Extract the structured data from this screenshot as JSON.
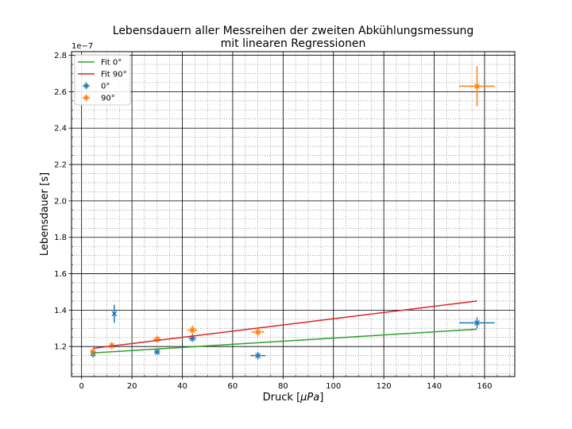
{
  "chart_data": {
    "type": "scatter",
    "title_lines": [
      "Lebensdauern aller Messreihen der zweiten Abkühlungsmessung",
      "mit linearen Regressionen"
    ],
    "xlabel_prefix": "Druck [",
    "xlabel_unit": "μPa",
    "xlabel_suffix": "]",
    "ylabel": "Lebensdauer [s]",
    "offset_text": "1e−7",
    "xlim": [
      -4,
      172
    ],
    "ylim": [
      1.035,
      2.82
    ],
    "x_ticks": [
      0,
      20,
      40,
      60,
      80,
      100,
      120,
      140,
      160
    ],
    "y_ticks": [
      1.2,
      1.4,
      1.6,
      1.8,
      2.0,
      2.2,
      2.4,
      2.6,
      2.8
    ],
    "x_tick_labels": [
      "0",
      "20",
      "40",
      "60",
      "80",
      "100",
      "120",
      "140",
      "160"
    ],
    "y_tick_labels": [
      "1.2",
      "1.4",
      "1.6",
      "1.8",
      "2.0",
      "2.2",
      "2.4",
      "2.6",
      "2.8"
    ],
    "x_minor_step": 5,
    "y_minor_step": 0.05,
    "grid": "major and minor",
    "legend_position": "top-left",
    "legend": [
      "Fit 0°",
      "Fit 90°",
      "0°",
      "90°"
    ],
    "series": [
      {
        "name": "0°",
        "kind": "errorbar",
        "color": "#1f77b4",
        "points": [
          {
            "x": 4.5,
            "y": 1.16,
            "xerr": 0.6,
            "yerr": 0.02
          },
          {
            "x": 13.0,
            "y": 1.38,
            "xerr": 0.6,
            "yerr": 0.05
          },
          {
            "x": 30.0,
            "y": 1.17,
            "xerr": 1.2,
            "yerr": 0.015
          },
          {
            "x": 44.0,
            "y": 1.245,
            "xerr": 1.5,
            "yerr": 0.02
          },
          {
            "x": 70.0,
            "y": 1.15,
            "xerr": 3.0,
            "yerr": 0.02
          },
          {
            "x": 157.0,
            "y": 1.33,
            "xerr": 7.0,
            "yerr": 0.03
          }
        ]
      },
      {
        "name": "90°",
        "kind": "errorbar",
        "color": "#ff7f0e",
        "points": [
          {
            "x": 4.5,
            "y": 1.17,
            "xerr": 0.6,
            "yerr": 0.02
          },
          {
            "x": 12.0,
            "y": 1.205,
            "xerr": 1.0,
            "yerr": 0.02
          },
          {
            "x": 30.0,
            "y": 1.24,
            "xerr": 1.5,
            "yerr": 0.02
          },
          {
            "x": 44.0,
            "y": 1.29,
            "xerr": 2.0,
            "yerr": 0.025
          },
          {
            "x": 70.0,
            "y": 1.28,
            "xerr": 2.5,
            "yerr": 0.025
          },
          {
            "x": 157.0,
            "y": 2.63,
            "xerr": 7.0,
            "yerr": 0.11
          }
        ]
      },
      {
        "name": "Fit 0°",
        "kind": "line",
        "color": "#2ca02c",
        "x": [
          4.5,
          157.0
        ],
        "y": [
          1.165,
          1.295
        ]
      },
      {
        "name": "Fit 90°",
        "kind": "line",
        "color": "#d62728",
        "x": [
          4.5,
          157.0
        ],
        "y": [
          1.19,
          1.45
        ]
      }
    ]
  }
}
